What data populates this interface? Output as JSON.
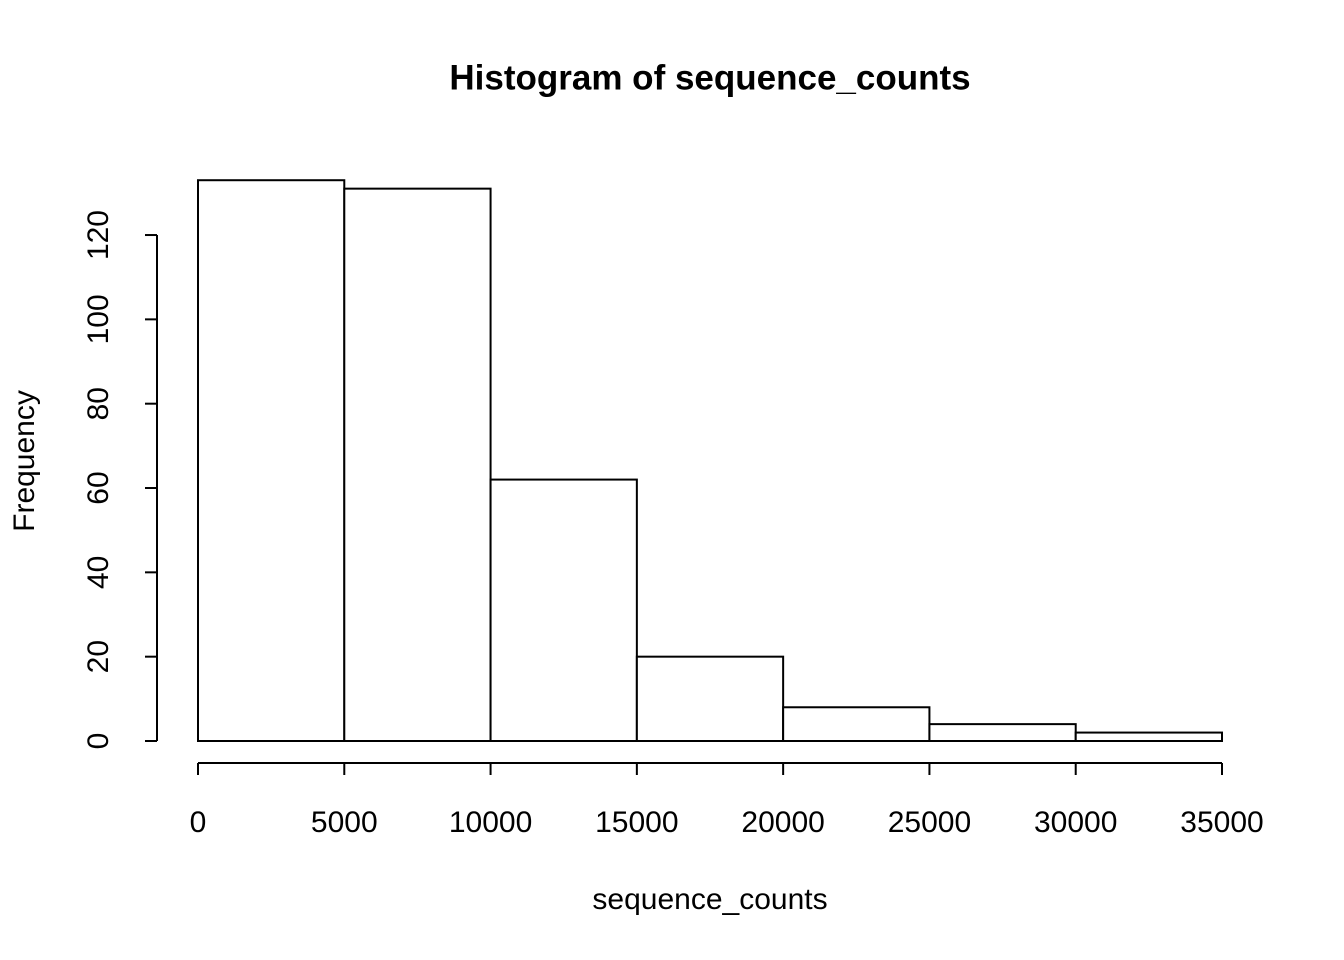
{
  "chart_data": {
    "type": "histogram",
    "title": "Histogram of sequence_counts",
    "x_label": "sequence_counts",
    "y_label": "Frequency",
    "bins": [
      0,
      5000,
      10000,
      15000,
      20000,
      25000,
      30000,
      35000
    ],
    "values": [
      133,
      131,
      62,
      20,
      8,
      4,
      2
    ],
    "color": "#ffffff",
    "xlim": [
      0,
      35000
    ],
    "xticks": [
      0,
      5000,
      10000,
      15000,
      20000,
      25000,
      30000,
      35000
    ],
    "ylim": [
      0,
      140
    ],
    "yticks": [
      0,
      20,
      40,
      60,
      80,
      100,
      120
    ]
  }
}
